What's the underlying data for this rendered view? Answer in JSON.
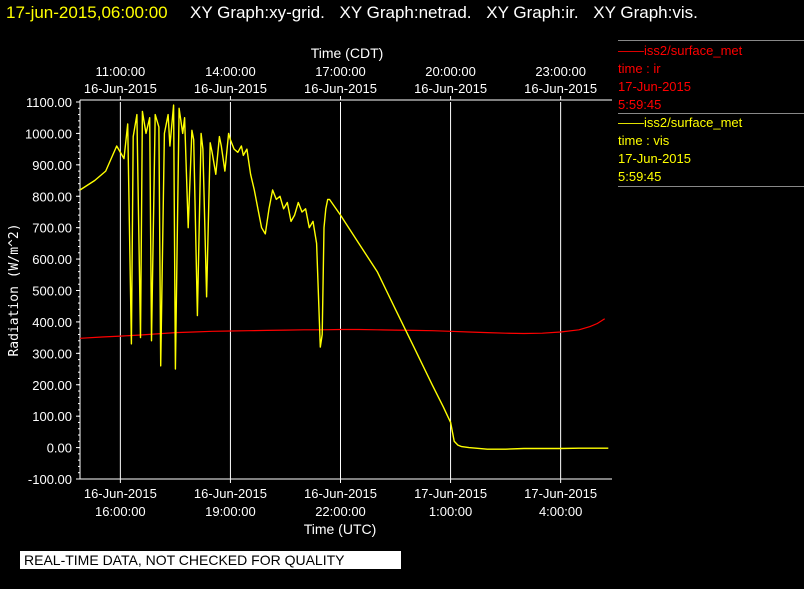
{
  "header": {
    "timestamp": "17-jun-2015,06:00:00",
    "titles": [
      "XY Graph:xy-grid.",
      "XY Graph:netrad.",
      "XY Graph:ir.",
      "XY Graph:vis."
    ]
  },
  "legend": [
    {
      "station": "——iss2/surface_met",
      "var": "time : ir",
      "date": "17-Jun-2015",
      "time": "5:59:45",
      "color": "#ff0000"
    },
    {
      "station": "——iss2/surface_met",
      "var": "time : vis",
      "date": "17-Jun-2015",
      "time": "5:59:45",
      "color": "#ffff00"
    }
  ],
  "disclaimer": "REAL-TIME DATA, NOT CHECKED FOR QUALITY",
  "chart_data": {
    "type": "line",
    "title": "",
    "ylabel": "Radiation (W/m^2)",
    "xlabel_bottom": "Time (UTC)",
    "xlabel_top": "Time (CDT)",
    "ylim": [
      -100,
      1100
    ],
    "xlim_hours_utc": [
      14.9,
      29.4
    ],
    "yticks": [
      -100,
      0,
      100,
      200,
      300,
      400,
      500,
      600,
      700,
      800,
      900,
      1000,
      1100
    ],
    "ytick_labels": [
      "-100.00",
      "0.00",
      "100.00",
      "200.00",
      "300.00",
      "400.00",
      "500.00",
      "600.00",
      "700.00",
      "800.00",
      "900.00",
      "1000.00",
      "1100.00"
    ],
    "xticks_bottom": [
      {
        "h": 16,
        "date": "16-Jun-2015",
        "time": "16:00:00"
      },
      {
        "h": 19,
        "date": "16-Jun-2015",
        "time": "19:00:00"
      },
      {
        "h": 22,
        "date": "16-Jun-2015",
        "time": "22:00:00"
      },
      {
        "h": 25,
        "date": "17-Jun-2015",
        "time": "1:00:00"
      },
      {
        "h": 28,
        "date": "17-Jun-2015",
        "time": "4:00:00"
      }
    ],
    "xticks_top": [
      {
        "h": 16,
        "date": "16-Jun-2015",
        "time": "11:00:00"
      },
      {
        "h": 19,
        "date": "16-Jun-2015",
        "time": "14:00:00"
      },
      {
        "h": 22,
        "date": "16-Jun-2015",
        "time": "17:00:00"
      },
      {
        "h": 25,
        "date": "16-Jun-2015",
        "time": "20:00:00"
      },
      {
        "h": 28,
        "date": "16-Jun-2015",
        "time": "23:00:00"
      }
    ],
    "grid": true,
    "series": [
      {
        "name": "ir",
        "color": "#ff0000",
        "x": [
          14.9,
          15.5,
          16.0,
          16.5,
          17.0,
          17.5,
          18.0,
          18.5,
          19.0,
          19.5,
          20.0,
          20.5,
          21.0,
          21.5,
          22.0,
          22.5,
          23.0,
          23.5,
          24.0,
          24.5,
          25.0,
          25.5,
          26.0,
          26.5,
          27.0,
          27.5,
          28.0,
          28.5,
          28.8,
          29.0,
          29.2
        ],
        "y": [
          348,
          352,
          355,
          358,
          362,
          366,
          368,
          370,
          371,
          372,
          373,
          374,
          375,
          375,
          376,
          376,
          375,
          374,
          373,
          372,
          370,
          368,
          366,
          364,
          363,
          364,
          368,
          375,
          385,
          395,
          410
        ]
      },
      {
        "name": "vis",
        "color": "#ffff00",
        "x": [
          14.9,
          15.3,
          15.6,
          15.9,
          16.1,
          16.2,
          16.3,
          16.35,
          16.45,
          16.55,
          16.6,
          16.7,
          16.8,
          16.85,
          16.95,
          17.05,
          17.1,
          17.2,
          17.3,
          17.35,
          17.45,
          17.5,
          17.6,
          17.7,
          17.75,
          17.85,
          17.95,
          18.0,
          18.1,
          18.2,
          18.25,
          18.35,
          18.45,
          18.5,
          18.6,
          18.7,
          18.75,
          18.85,
          18.95,
          19.0,
          19.1,
          19.2,
          19.3,
          19.35,
          19.45,
          19.55,
          19.65,
          19.75,
          19.85,
          19.95,
          20.05,
          20.15,
          20.25,
          20.35,
          20.45,
          20.55,
          20.65,
          20.75,
          20.85,
          20.95,
          21.05,
          21.15,
          21.25,
          21.35,
          21.45,
          21.5,
          21.55,
          21.6,
          21.65,
          21.7,
          22.0,
          22.5,
          23.0,
          23.5,
          24.0,
          24.5,
          24.8,
          25.0,
          25.1,
          25.2,
          25.3,
          25.5,
          26.0,
          26.5,
          27.0,
          27.5,
          28.0,
          28.5,
          29.0,
          29.3
        ],
        "y": [
          820,
          850,
          880,
          960,
          920,
          1030,
          330,
          990,
          1060,
          350,
          1070,
          1000,
          1050,
          340,
          1060,
          1020,
          260,
          1000,
          1060,
          960,
          1090,
          250,
          1080,
          1000,
          1050,
          700,
          1010,
          980,
          420,
          1000,
          950,
          480,
          970,
          940,
          870,
          990,
          960,
          880,
          1000,
          980,
          950,
          940,
          960,
          930,
          950,
          870,
          820,
          760,
          700,
          680,
          760,
          820,
          790,
          800,
          760,
          780,
          720,
          740,
          780,
          750,
          760,
          700,
          720,
          650,
          320,
          360,
          700,
          760,
          790,
          790,
          740,
          650,
          560,
          440,
          320,
          200,
          130,
          80,
          20,
          8,
          3,
          0,
          -5,
          -5,
          -3,
          -3,
          -3,
          -2,
          -2,
          -2
        ]
      }
    ]
  }
}
